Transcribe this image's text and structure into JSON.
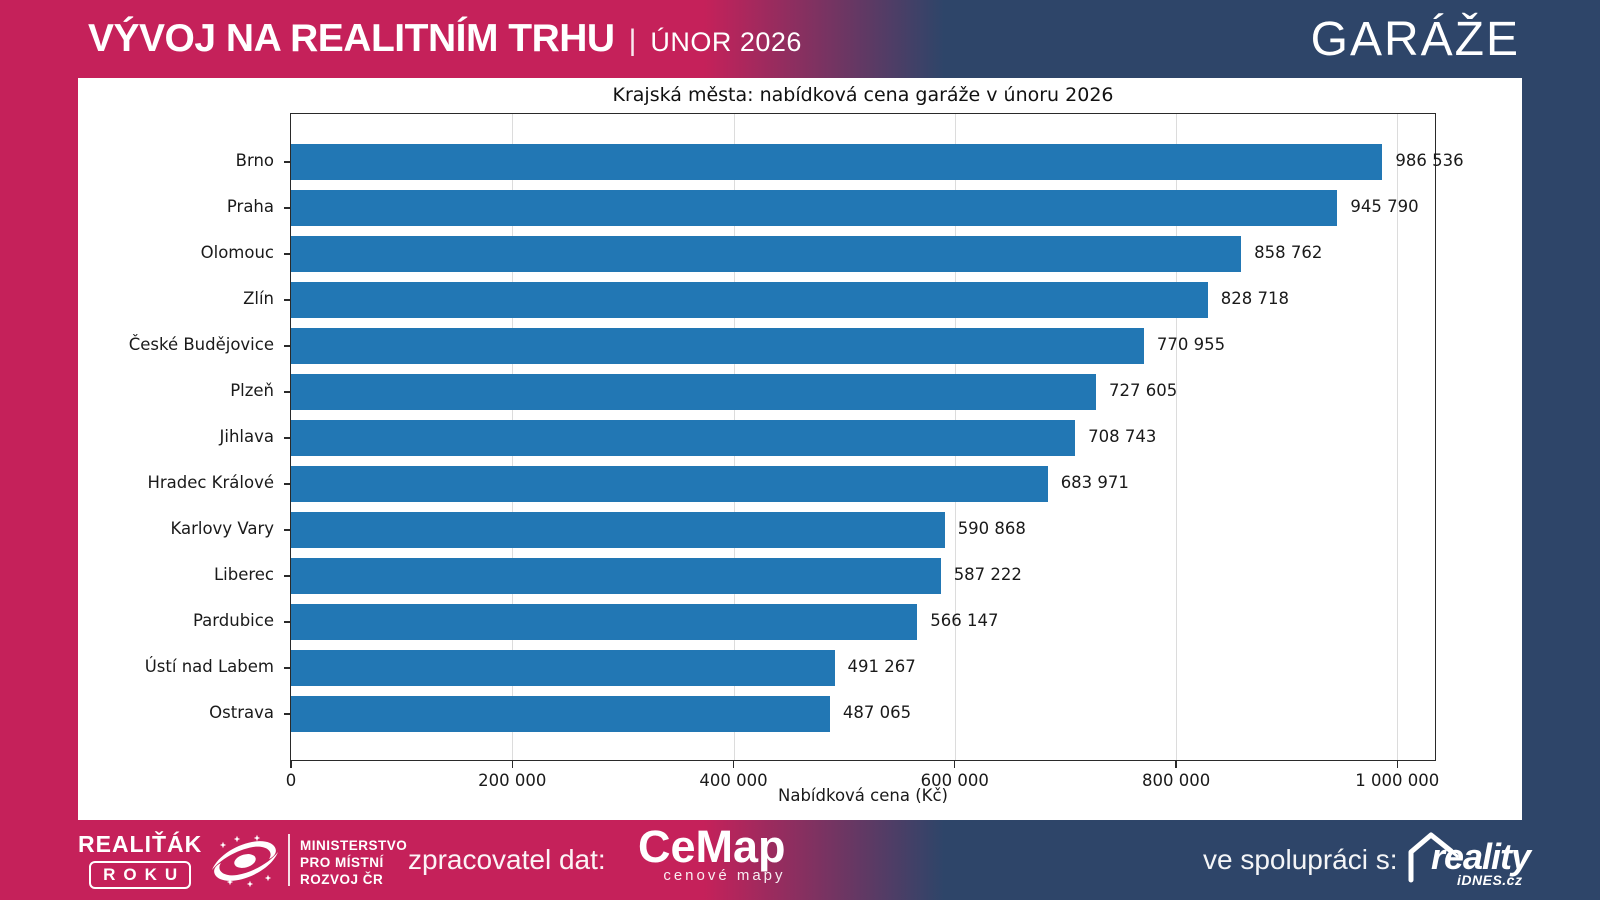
{
  "header": {
    "title": "VÝVOJ NA REALITNÍM TRHU",
    "separator": "|",
    "period": "ÚNOR 2026",
    "category": "GARÁŽE"
  },
  "chart_data": {
    "type": "bar",
    "orientation": "horizontal",
    "title": "Krajská města: nabídková cena garáže v únoru 2026",
    "xlabel": "Nabídková cena (Kč)",
    "categories": [
      "Brno",
      "Praha",
      "Olomouc",
      "Zlín",
      "České Budějovice",
      "Plzeň",
      "Jihlava",
      "Hradec Králové",
      "Karlovy Vary",
      "Liberec",
      "Pardubice",
      "Ústí nad Labem",
      "Ostrava"
    ],
    "values": [
      986536,
      945790,
      858762,
      828718,
      770955,
      727605,
      708743,
      683971,
      590868,
      587222,
      566147,
      491267,
      487065
    ],
    "value_labels": [
      "986 536",
      "945 790",
      "858 762",
      "828 718",
      "770 955",
      "727 605",
      "708 743",
      "683 971",
      "590 868",
      "587 222",
      "566 147",
      "491 267",
      "487 065"
    ],
    "xlim": [
      0,
      1035863
    ],
    "xticks": [
      0,
      200000,
      400000,
      600000,
      800000,
      1000000
    ],
    "xtick_labels": [
      "0",
      "200 000",
      "400 000",
      "600 000",
      "800 000",
      "1 000 000"
    ],
    "grid": true,
    "legend": false,
    "bar_color": "#2277b4"
  },
  "colors": {
    "crimson": "#c5215a",
    "navy": "#2e4569",
    "bar_blue": "#2277b4",
    "card_bg": "#ffffff"
  },
  "footer": {
    "realitak_line1": "REALIŤÁK",
    "realitak_line2": "ROKU",
    "ministry_lines": [
      "MINISTERSTVO",
      "PRO MÍSTNÍ",
      "ROZVOJ ČR"
    ],
    "provider_label": "zpracovatel dat:",
    "cemap_name": "CeMap",
    "cemap_sub": "cenové mapy",
    "partner_label": "ve spolupráci s:",
    "partner_name": "reality",
    "partner_sub": "iDNES.cz"
  }
}
